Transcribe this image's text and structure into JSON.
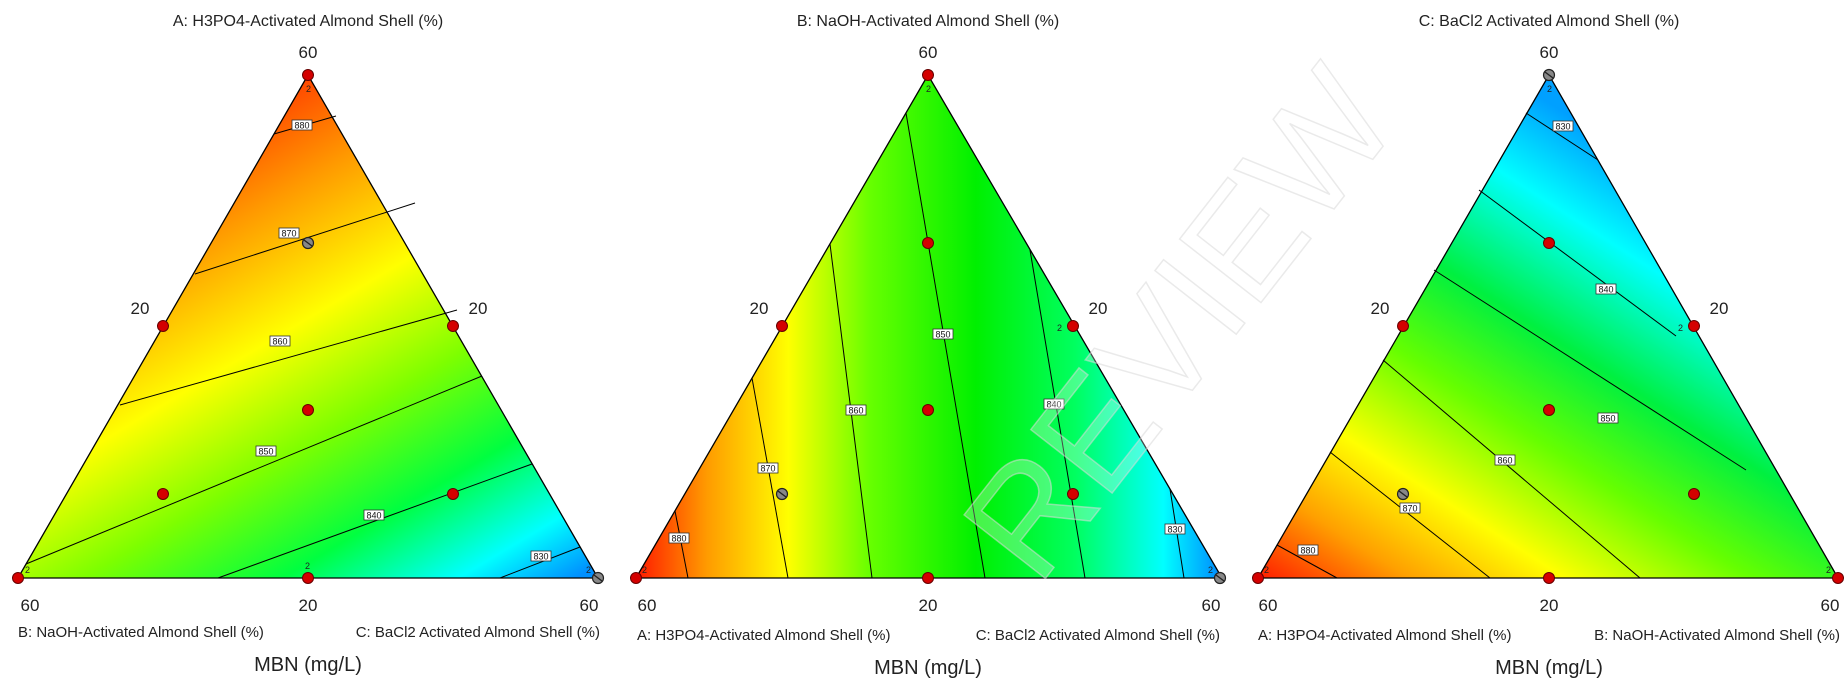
{
  "watermark": "REVIEW",
  "chart_data": [
    {
      "type": "ternary-contour",
      "title": "A: H3PO4-Activated Almond Shell (%)",
      "ylabel": "MBN (mg/L)",
      "top_value": "60",
      "left_mid_value": "20",
      "right_mid_value": "20",
      "bottom_left_value": "60",
      "bottom_mid_value": "20",
      "bottom_right_value": "60",
      "bottom_left_label": "B: NaOH-Activated Almond Shell (%)",
      "bottom_right_label": "C: BaCl2 Activated Almond Shell (%)",
      "contour_labels": [
        "880",
        "870",
        "860",
        "850",
        "840",
        "830"
      ],
      "replicate_marker": "2"
    },
    {
      "type": "ternary-contour",
      "title": "B: NaOH-Activated Almond Shell (%)",
      "ylabel": "MBN (mg/L)",
      "top_value": "60",
      "left_mid_value": "20",
      "right_mid_value": "20",
      "bottom_left_value": "60",
      "bottom_mid_value": "20",
      "bottom_right_value": "60",
      "bottom_left_label": "A: H3PO4-Activated Almond Shell (%)",
      "bottom_right_label": "C: BaCl2 Activated Almond Shell (%)",
      "contour_labels": [
        "880",
        "870",
        "860",
        "850",
        "840",
        "830"
      ],
      "replicate_marker": "2"
    },
    {
      "type": "ternary-contour",
      "title": "C: BaCl2 Activated Almond Shell (%)",
      "ylabel": "MBN (mg/L)",
      "top_value": "60",
      "left_mid_value": "20",
      "right_mid_value": "20",
      "bottom_left_value": "60",
      "bottom_mid_value": "20",
      "bottom_right_value": "60",
      "bottom_left_label": "A: H3PO4-Activated Almond Shell (%)",
      "bottom_right_label": "B: NaOH-Activated Almond Shell (%)",
      "contour_labels": [
        "830",
        "840",
        "850",
        "860",
        "870",
        "880"
      ],
      "replicate_marker": "2"
    }
  ]
}
